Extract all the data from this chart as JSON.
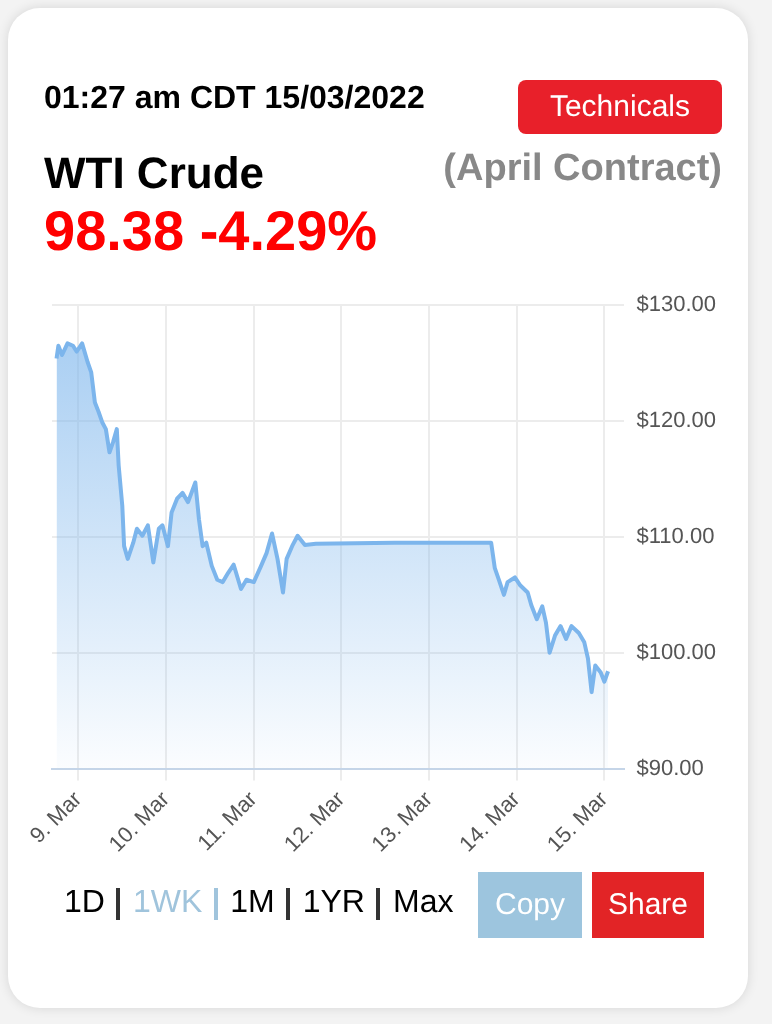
{
  "chart_data": {
    "type": "area",
    "title": "WTI Crude",
    "subtitle": "(April Contract)",
    "annotations": [
      "01:27 am CDT 15/03/2022",
      "Technicals",
      "98.38 -4.29%",
      "1D",
      "1WK",
      "1M",
      "1YR",
      "Max",
      "Copy",
      "Share"
    ],
    "x": [
      "2022-03-08T18:00",
      "2022-03-08T18:30",
      "2022-03-08T19:30",
      "2022-03-08T21:00",
      "2022-03-08T22:30",
      "2022-03-08T23:30",
      "2022-03-09T01:00",
      "2022-03-09T02:30",
      "2022-03-09T03:30",
      "2022-03-09T04:30",
      "2022-03-09T05:30",
      "2022-03-09T06:30",
      "2022-03-09T07:30",
      "2022-03-09T08:30",
      "2022-03-09T09:30",
      "2022-03-09T10:30",
      "2022-03-09T11:00",
      "2022-03-09T12:00",
      "2022-03-09T12:30",
      "2022-03-09T13:30",
      "2022-03-09T15:00",
      "2022-03-09T16:00",
      "2022-03-09T17:30",
      "2022-03-09T19:00",
      "2022-03-09T20:30",
      "2022-03-09T22:00",
      "2022-03-09T23:00",
      "2022-03-10T00:30",
      "2022-03-10T01:30",
      "2022-03-10T03:00",
      "2022-03-10T04:30",
      "2022-03-10T06:00",
      "2022-03-10T08:00",
      "2022-03-10T09:00",
      "2022-03-10T10:00",
      "2022-03-10T11:00",
      "2022-03-10T12:30",
      "2022-03-10T14:00",
      "2022-03-10T15:30",
      "2022-03-10T17:00",
      "2022-03-10T18:30",
      "2022-03-10T20:30",
      "2022-03-10T22:00",
      "2022-03-11T00:00",
      "2022-03-11T02:00",
      "2022-03-11T03:30",
      "2022-03-11T05:00",
      "2022-03-11T06:30",
      "2022-03-11T08:00",
      "2022-03-11T09:00",
      "2022-03-11T10:30",
      "2022-03-11T12:00",
      "2022-03-11T14:00",
      "2022-03-11T17:00",
      "2022-03-12T14:30",
      "2022-03-13T17:00",
      "2022-03-13T18:00",
      "2022-03-13T19:00",
      "2022-03-13T20:30",
      "2022-03-13T21:30",
      "2022-03-13T23:30",
      "2022-03-14T01:00",
      "2022-03-14T03:00",
      "2022-03-14T04:00",
      "2022-03-14T05:30",
      "2022-03-14T07:00",
      "2022-03-14T08:00",
      "2022-03-14T09:00",
      "2022-03-14T10:30",
      "2022-03-14T12:00",
      "2022-03-14T13:30",
      "2022-03-14T15:00",
      "2022-03-14T17:00",
      "2022-03-14T18:30",
      "2022-03-14T19:30",
      "2022-03-14T20:30",
      "2022-03-14T21:30",
      "2022-03-14T23:00",
      "2022-03-15T00:00",
      "2022-03-15T01:00"
    ],
    "series": [
      {
        "color": "#7cb5ec",
        "values": [
          125.4,
          126.5,
          125.7,
          126.7,
          126.5,
          126.0,
          126.7,
          125.1,
          124.2,
          121.6,
          120.8,
          119.9,
          119.3,
          117.3,
          118.2,
          119.3,
          116.2,
          112.7,
          109.2,
          108.1,
          109.5,
          110.7,
          110.1,
          111.0,
          107.8,
          110.7,
          111.0,
          109.2,
          112.1,
          113.3,
          113.8,
          113.0,
          114.7,
          111.5,
          109.2,
          109.5,
          107.5,
          106.3,
          106.1,
          106.9,
          107.6,
          105.5,
          106.3,
          106.1,
          107.5,
          108.6,
          110.3,
          108.1,
          105.2,
          108.1,
          109.2,
          110.1,
          109.3,
          109.4,
          109.5,
          109.5,
          107.3,
          106.4,
          105.0,
          106.1,
          106.5,
          105.8,
          105.2,
          104.1,
          102.9,
          104.0,
          102.6,
          100.0,
          101.5,
          102.3,
          101.2,
          102.3,
          101.7,
          100.9,
          99.5,
          96.6,
          98.9,
          98.3,
          97.5,
          98.4
        ]
      }
    ],
    "xlim": [
      "2022-03-08T16:45",
      "2022-03-15T05:30"
    ],
    "xticks": [
      {
        "value": "2022-03-09",
        "label": "9. Mar"
      },
      {
        "value": "2022-03-10",
        "label": "10. Mar"
      },
      {
        "value": "2022-03-11",
        "label": "11. Mar"
      },
      {
        "value": "2022-03-12",
        "label": "12. Mar"
      },
      {
        "value": "2022-03-13",
        "label": "13. Mar"
      },
      {
        "value": "2022-03-14",
        "label": "14. Mar"
      },
      {
        "value": "2022-03-15",
        "label": "15. Mar"
      }
    ],
    "ylim": [
      90,
      130
    ],
    "yticks": [
      {
        "value": 90,
        "label": "$90.00"
      },
      {
        "value": 100,
        "label": "$100.00"
      },
      {
        "value": 110,
        "label": "$110.00"
      },
      {
        "value": 120,
        "label": "$120.00"
      },
      {
        "value": 130,
        "label": "$130.00"
      }
    ],
    "grid": true,
    "legend": false,
    "marker": "none"
  }
}
